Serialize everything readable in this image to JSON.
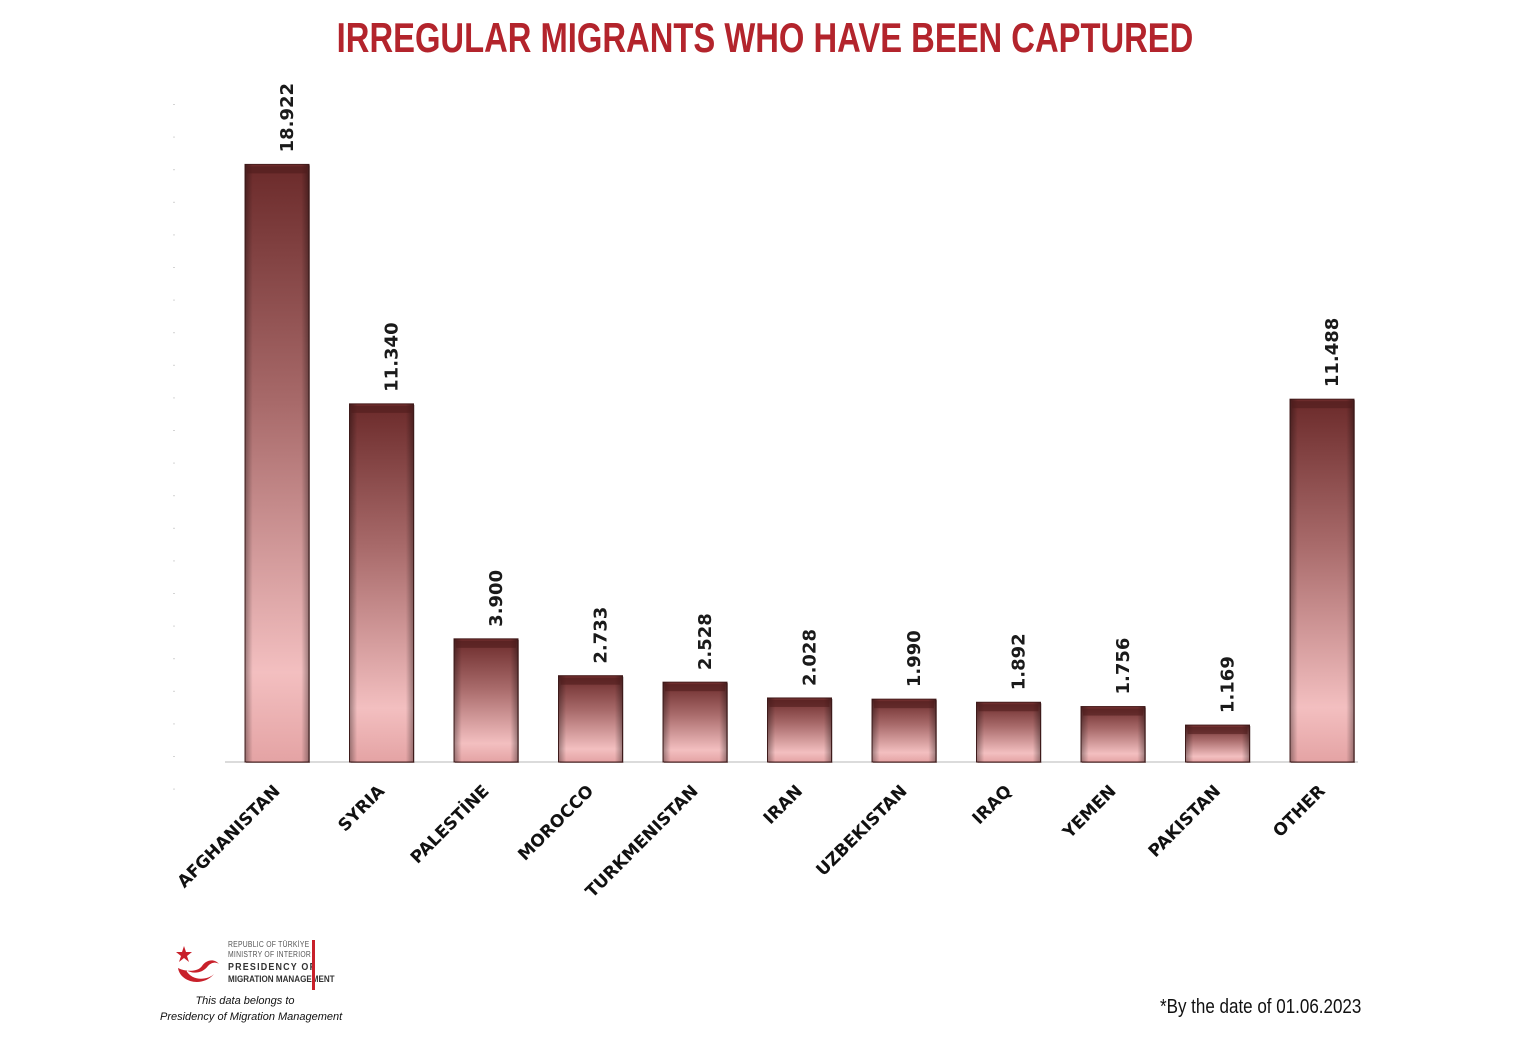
{
  "chart_data": {
    "type": "bar",
    "title": "IRREGULAR MIGRANTS WHO HAVE BEEN CAPTURED",
    "categories": [
      "AFGHANISTAN",
      "SYRIA",
      "PALESTİNE",
      "MOROCCO",
      "TURKMENISTAN",
      "IRAN",
      "UZBEKISTAN",
      "IRAQ",
      "YEMEN",
      "PAKISTAN",
      "OTHER"
    ],
    "values": [
      18922,
      11340,
      3900,
      2733,
      2528,
      2028,
      1990,
      1892,
      1756,
      1169,
      11488
    ],
    "value_labels": [
      "18.922",
      "11.340",
      "3.900",
      "2.733",
      "2.528",
      "2.028",
      "1.990",
      "1.892",
      "1.756",
      "1.169",
      "11.488"
    ],
    "ylim": [
      0,
      20000
    ],
    "grid": false,
    "colors": {
      "bar_dark": "#6b2a2a",
      "bar_light": "#f3bfc0",
      "title": "#b3242c"
    }
  },
  "footer": {
    "logo_line1": "REPUBLIC OF TÜRKİYE",
    "logo_line2": "MINISTRY OF INTERIOR",
    "logo_line3": "PRESIDENCY OF",
    "logo_line4": "MIGRATION MANAGEMENT",
    "credit_line1": "This data belongs to",
    "credit_line2": "Presidency of Migration Management",
    "date_note": "*By the date of 01.06.2023",
    "logo_icon": "crescent-star-bird-icon"
  }
}
